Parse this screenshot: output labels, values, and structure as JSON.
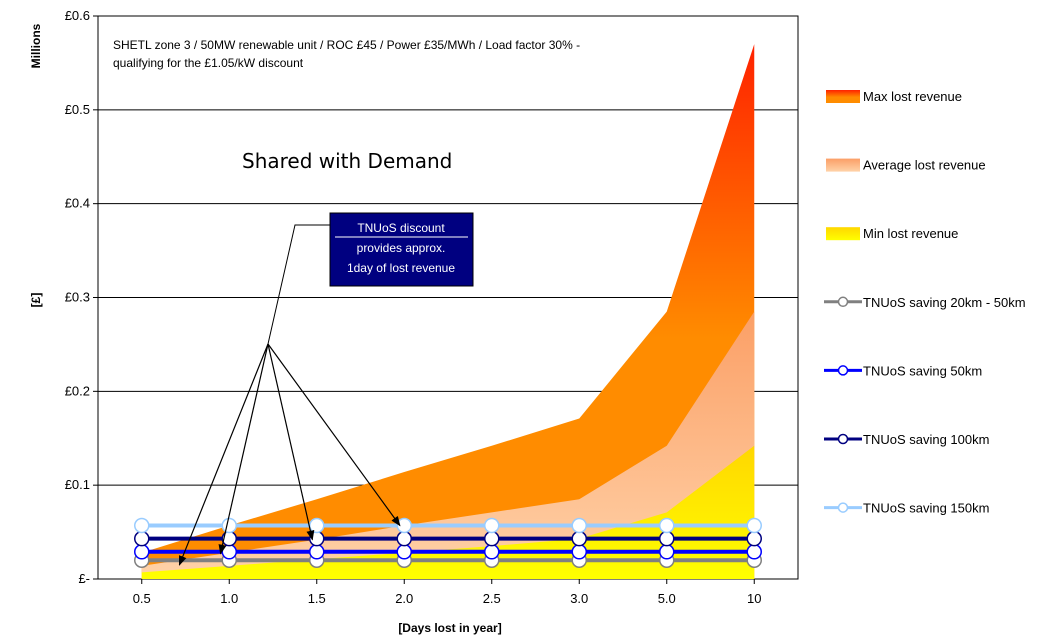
{
  "chart_data": {
    "type": "area",
    "title": "",
    "unit_label": "Millions",
    "ylabel": "[£]",
    "xlabel": "[Days lost in year]",
    "ylim": [
      0,
      0.6
    ],
    "y_ticks": [
      {
        "value": 0,
        "label": "£-"
      },
      {
        "value": 0.1,
        "label": "£0.1"
      },
      {
        "value": 0.2,
        "label": "£0.2"
      },
      {
        "value": 0.3,
        "label": "£0.3"
      },
      {
        "value": 0.4,
        "label": "£0.4"
      },
      {
        "value": 0.5,
        "label": "£0.5"
      },
      {
        "value": 0.6,
        "label": "£0.6"
      }
    ],
    "categories": [
      "0.5",
      "1.0",
      "1.5",
      "2.0",
      "2.5",
      "3.0",
      "5.0",
      "10"
    ],
    "grid": true,
    "legend_position": "right",
    "annotation_lines": [
      "SHETL zone 3 / 50MW renewable unit / ROC £45 / Power £35/MWh / Load factor 30% -",
      "qualifying for the £1.05/kW discount"
    ],
    "big_label": "Shared with Demand",
    "callout_lines": [
      "TNUoS discount",
      "provides approx.",
      "1day of lost revenue"
    ],
    "area_series": [
      {
        "name": "Max lost revenue",
        "values": [
          0.028,
          0.057,
          0.085,
          0.114,
          0.142,
          0.171,
          0.285,
          0.57
        ],
        "color": "#ff8c00",
        "color_top": "#ff2200"
      },
      {
        "name": "Average lost revenue",
        "values": [
          0.014,
          0.028,
          0.042,
          0.057,
          0.071,
          0.085,
          0.142,
          0.285
        ],
        "color": "#ffc99a",
        "color_top": "#fba06a"
      },
      {
        "name": "Min lost revenue",
        "values": [
          0.007,
          0.014,
          0.021,
          0.028,
          0.035,
          0.043,
          0.071,
          0.142
        ],
        "color": "#ffef00",
        "color_top": "#ffd700"
      }
    ],
    "line_series": [
      {
        "name": "TNUoS saving 20km - 50km",
        "values": [
          0.02,
          0.02,
          0.02,
          0.02,
          0.02,
          0.02,
          0.02,
          0.02
        ],
        "color": "#808080"
      },
      {
        "name": "TNUoS saving 50km",
        "values": [
          0.029,
          0.029,
          0.029,
          0.029,
          0.029,
          0.029,
          0.029,
          0.029
        ],
        "color": "#0000ff"
      },
      {
        "name": "TNUoS saving 100km",
        "values": [
          0.043,
          0.043,
          0.043,
          0.043,
          0.043,
          0.043,
          0.043,
          0.043
        ],
        "color": "#000080"
      },
      {
        "name": "TNUoS saving 150km",
        "values": [
          0.057,
          0.057,
          0.057,
          0.057,
          0.057,
          0.057,
          0.057,
          0.057
        ],
        "color": "#99ccff"
      }
    ],
    "arrow_targets": [
      {
        "x_index": 0.43,
        "value": 0.015
      },
      {
        "x_index": 0.9,
        "value": 0.027
      },
      {
        "x_index": 1.95,
        "value": 0.042
      },
      {
        "x_index": 2.95,
        "value": 0.057
      }
    ]
  }
}
